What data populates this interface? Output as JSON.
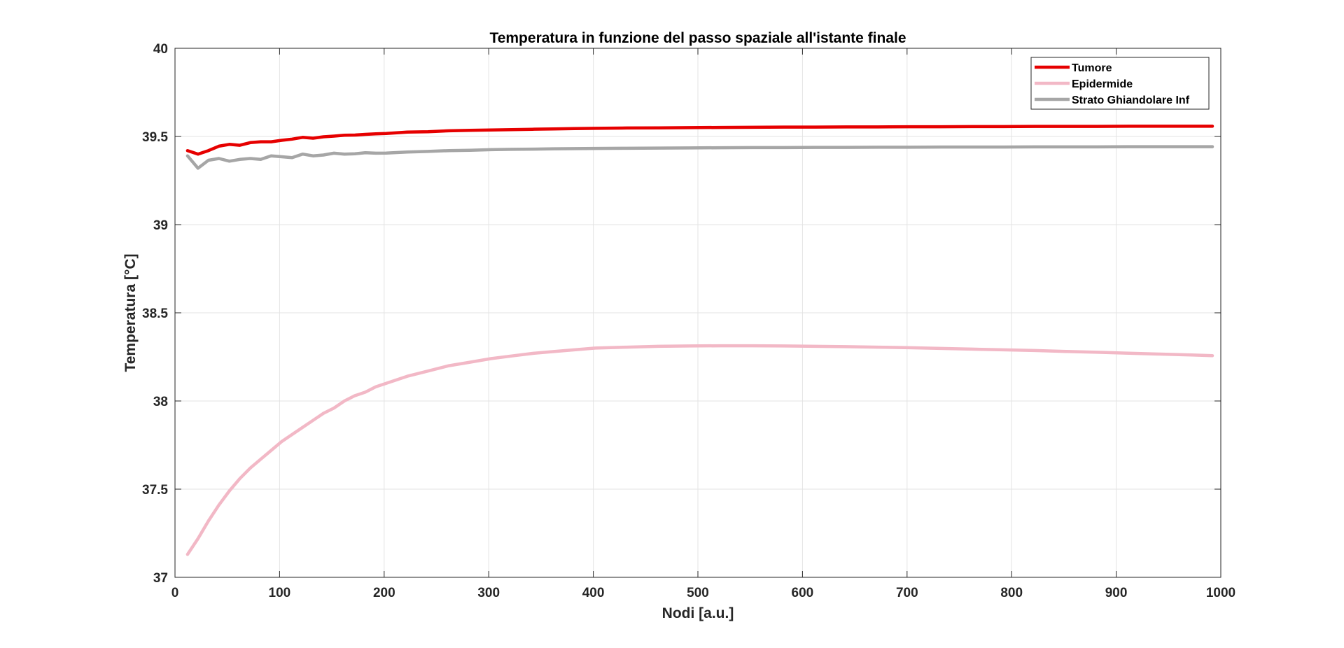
{
  "chart_data": {
    "type": "line",
    "title": "Temperatura in funzione del passo spaziale all'istante finale",
    "xlabel": "Nodi [a.u.]",
    "ylabel": "Temperatura [°C]",
    "xlim": [
      0,
      1000
    ],
    "ylim": [
      37,
      40
    ],
    "xticks": [
      0,
      100,
      200,
      300,
      400,
      500,
      600,
      700,
      800,
      900,
      1000
    ],
    "yticks": [
      37,
      37.5,
      38,
      38.5,
      39,
      39.5,
      40
    ],
    "xtick_labels": [
      "0",
      "100",
      "200",
      "300",
      "400",
      "500",
      "600",
      "700",
      "800",
      "900",
      "1000"
    ],
    "ytick_labels": [
      "37",
      "37.5",
      "38",
      "38.5",
      "39",
      "39.5",
      "40"
    ],
    "grid": true,
    "legend_position": "top-right",
    "x": [
      12,
      22,
      32,
      42,
      52,
      62,
      72,
      82,
      92,
      102,
      112,
      122,
      132,
      142,
      152,
      162,
      172,
      182,
      192,
      202,
      222,
      242,
      262,
      282,
      302,
      322,
      342,
      362,
      382,
      402,
      432,
      462,
      492,
      522,
      552,
      582,
      612,
      642,
      672,
      702,
      732,
      762,
      792,
      822,
      852,
      882,
      912,
      942,
      972,
      992
    ],
    "series": [
      {
        "name": "Tumore",
        "color": "#e60000",
        "values": [
          39.42,
          39.4,
          39.42,
          39.445,
          39.455,
          39.45,
          39.465,
          39.47,
          39.47,
          39.478,
          39.485,
          39.495,
          39.49,
          39.498,
          39.502,
          39.507,
          39.508,
          39.512,
          39.515,
          39.517,
          39.525,
          39.527,
          39.532,
          39.535,
          39.537,
          39.539,
          39.541,
          39.543,
          39.545,
          39.546,
          39.548,
          39.549,
          39.55,
          39.551,
          39.552,
          39.553,
          39.553,
          39.554,
          39.554,
          39.555,
          39.555,
          39.556,
          39.556,
          39.557,
          39.557,
          39.557,
          39.558,
          39.558,
          39.558,
          39.558
        ]
      },
      {
        "name": "Epidermide",
        "color": "#f2b8c6",
        "values": [
          37.13,
          37.22,
          37.32,
          37.41,
          37.49,
          37.56,
          37.62,
          37.67,
          37.72,
          37.77,
          37.81,
          37.85,
          37.89,
          37.93,
          37.96,
          38.0,
          38.03,
          38.05,
          38.08,
          38.1,
          38.14,
          38.17,
          38.2,
          38.22,
          38.24,
          38.255,
          38.27,
          38.28,
          38.29,
          38.3,
          38.305,
          38.31,
          38.312,
          38.313,
          38.313,
          38.312,
          38.31,
          38.308,
          38.305,
          38.302,
          38.298,
          38.294,
          38.29,
          38.286,
          38.281,
          38.276,
          38.271,
          38.266,
          38.261,
          38.257
        ]
      },
      {
        "name": "Strato Ghiandolare Inf",
        "color": "#a6a6a6",
        "values": [
          39.39,
          39.32,
          39.365,
          39.375,
          39.36,
          39.37,
          39.375,
          39.37,
          39.39,
          39.385,
          39.38,
          39.4,
          39.39,
          39.395,
          39.405,
          39.4,
          39.402,
          39.408,
          39.405,
          39.406,
          39.412,
          39.415,
          39.42,
          39.422,
          39.425,
          39.427,
          39.428,
          39.43,
          39.431,
          39.432,
          39.433,
          39.434,
          39.435,
          39.436,
          39.437,
          39.437,
          39.438,
          39.438,
          39.439,
          39.439,
          39.44,
          39.44,
          39.44,
          39.441,
          39.441,
          39.441,
          39.442,
          39.442,
          39.442,
          39.442
        ]
      }
    ]
  }
}
